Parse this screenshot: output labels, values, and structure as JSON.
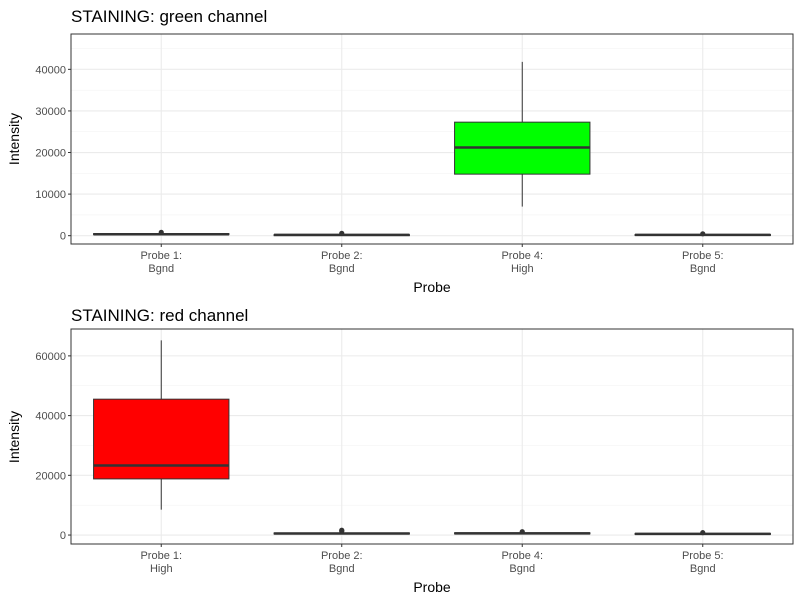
{
  "chart_data": [
    {
      "type": "box",
      "title": "STAINING: green channel",
      "xlabel": "Probe",
      "ylabel": "Intensity",
      "ylim": [
        -2000,
        48500
      ],
      "yticks": [
        0,
        10000,
        20000,
        30000,
        40000
      ],
      "ytick_labels": [
        "0",
        "10000",
        "20000",
        "30000",
        "40000"
      ],
      "categories": [
        {
          "line1": "Probe 1:",
          "line2": "Bgnd"
        },
        {
          "line1": "Probe 2:",
          "line2": "Bgnd"
        },
        {
          "line1": "Probe 4:",
          "line2": "High"
        },
        {
          "line1": "Probe 5:",
          "line2": "Bgnd"
        }
      ],
      "boxes": [
        {
          "min": 150,
          "q1": 250,
          "median": 350,
          "q3": 500,
          "max": 650,
          "outliers": [
            800
          ],
          "fill": "#ffffff"
        },
        {
          "min": 50,
          "q1": 120,
          "median": 180,
          "q3": 250,
          "max": 350,
          "outliers": [
            550
          ],
          "fill": "#ffffff"
        },
        {
          "min": 7000,
          "q1": 14800,
          "median": 21200,
          "q3": 27300,
          "max": 41800,
          "outliers": [],
          "fill": "#00ff00"
        },
        {
          "min": 100,
          "q1": 150,
          "median": 200,
          "q3": 280,
          "max": 350,
          "outliers": [
            450
          ],
          "fill": "#ffffff"
        }
      ],
      "grid": true
    },
    {
      "type": "box",
      "title": "STAINING: red channel",
      "xlabel": "Probe",
      "ylabel": "Intensity",
      "ylim": [
        -3000,
        69000
      ],
      "yticks": [
        0,
        20000,
        40000,
        60000
      ],
      "ytick_labels": [
        "0",
        "20000",
        "40000",
        "60000"
      ],
      "categories": [
        {
          "line1": "Probe 1:",
          "line2": "High"
        },
        {
          "line1": "Probe 2:",
          "line2": "Bgnd"
        },
        {
          "line1": "Probe 4:",
          "line2": "Bgnd"
        },
        {
          "line1": "Probe 5:",
          "line2": "Bgnd"
        }
      ],
      "boxes": [
        {
          "min": 8500,
          "q1": 18800,
          "median": 23300,
          "q3": 45500,
          "max": 65200,
          "outliers": [],
          "fill": "#ff0000"
        },
        {
          "min": 200,
          "q1": 350,
          "median": 500,
          "q3": 700,
          "max": 900,
          "outliers": [
            1300,
            1600
          ],
          "fill": "#ffffff"
        },
        {
          "min": 250,
          "q1": 400,
          "median": 550,
          "q3": 750,
          "max": 900,
          "outliers": [
            1100
          ],
          "fill": "#ffffff"
        },
        {
          "min": 150,
          "q1": 250,
          "median": 400,
          "q3": 550,
          "max": 700,
          "outliers": [
            800
          ],
          "fill": "#ffffff"
        }
      ],
      "grid": true
    }
  ]
}
